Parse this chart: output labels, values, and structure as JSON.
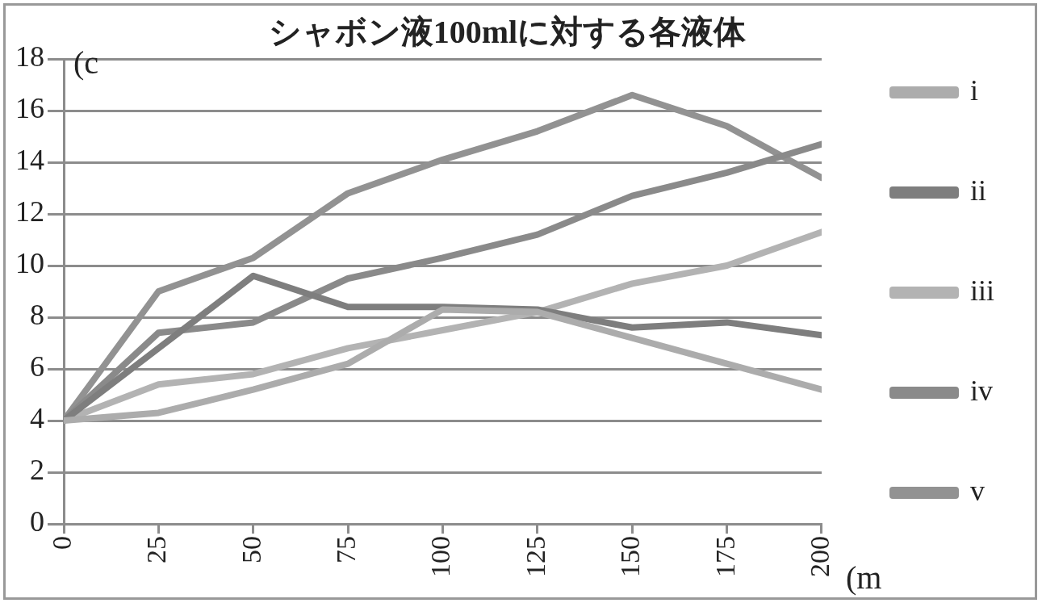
{
  "chart_data": {
    "type": "line",
    "title": "シャボン液100mlに対する各液体",
    "ylabel": "(c",
    "xlabel": "(m",
    "x": [
      0,
      25,
      50,
      75,
      100,
      125,
      150,
      175,
      200
    ],
    "series": [
      {
        "name": "i",
        "color": "#acacac",
        "values": [
          4,
          4.3,
          5.2,
          6.2,
          8.3,
          8.2,
          7.2,
          6.2,
          5.2
        ]
      },
      {
        "name": "ii",
        "color": "#7e7e7e",
        "values": [
          4,
          6.8,
          9.6,
          8.4,
          8.4,
          8.3,
          7.6,
          7.8,
          7.3
        ]
      },
      {
        "name": "iii",
        "color": "#b3b3b3",
        "values": [
          4,
          5.4,
          5.8,
          6.8,
          7.5,
          8.2,
          9.3,
          10.0,
          11.3
        ]
      },
      {
        "name": "iv",
        "color": "#8a8a8a",
        "values": [
          4,
          7.4,
          7.8,
          9.5,
          10.3,
          11.2,
          12.7,
          13.6,
          14.7
        ]
      },
      {
        "name": "v",
        "color": "#929292",
        "values": [
          4,
          9.0,
          10.3,
          12.8,
          14.1,
          15.2,
          16.6,
          15.4,
          13.4
        ]
      }
    ],
    "xlim": [
      0,
      200
    ],
    "xticks": [
      0,
      25,
      50,
      75,
      100,
      125,
      150,
      175,
      200
    ],
    "ylim": [
      0,
      18
    ],
    "yticks": [
      0,
      2,
      4,
      6,
      8,
      10,
      12,
      14,
      16,
      18
    ],
    "grid": "y",
    "legend": "right",
    "marker": "none",
    "line_style": "solid"
  }
}
